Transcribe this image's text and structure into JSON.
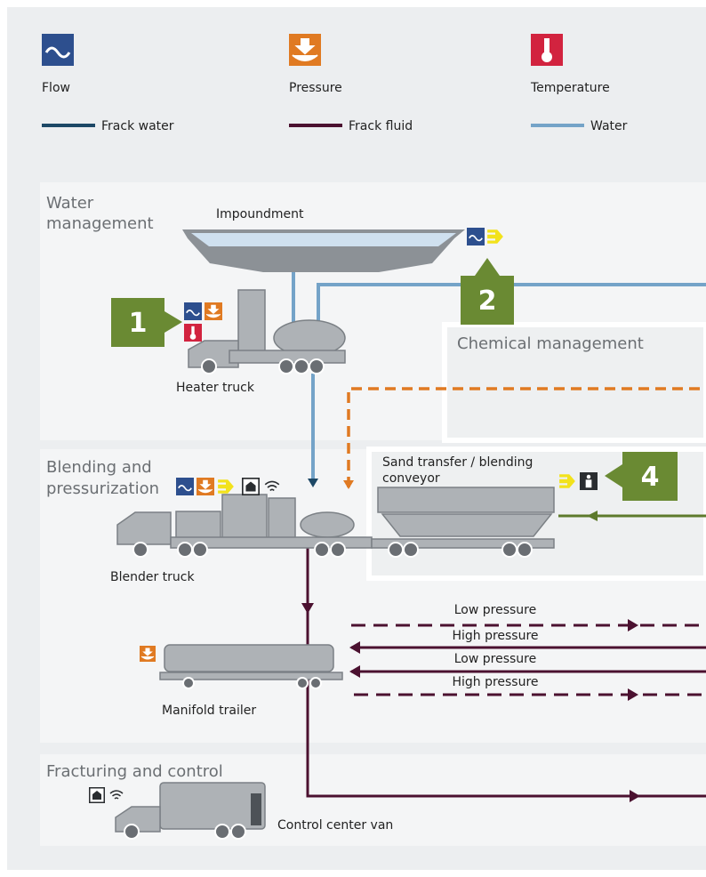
{
  "legend": {
    "icons": [
      {
        "label": "Flow"
      },
      {
        "label": "Pressure"
      },
      {
        "label": "Temperature"
      }
    ],
    "lines": [
      {
        "label": "Frack water",
        "color": "#1d4866"
      },
      {
        "label": "Frack fluid",
        "color": "#4b1130"
      },
      {
        "label": "Water",
        "color": "#74a3c8"
      }
    ]
  },
  "sections": {
    "water": {
      "title": [
        "Water",
        "management"
      ]
    },
    "chemical": {
      "title": "Chemical management"
    },
    "blending": {
      "title": [
        "Blending and",
        "pressurization"
      ]
    },
    "fracturing": {
      "title": "Fracturing and control"
    }
  },
  "equipment": {
    "impoundment": "Impoundment",
    "heater": "Heater truck",
    "sand": [
      "Sand transfer / blending",
      "conveyor"
    ],
    "blender": "Blender truck",
    "manifold": "Manifold trailer",
    "van": "Control center van"
  },
  "markers": [
    "1",
    "2",
    "4"
  ],
  "flows": [
    "Low pressure",
    "High pressure",
    "Low pressure",
    "High pressure"
  ]
}
